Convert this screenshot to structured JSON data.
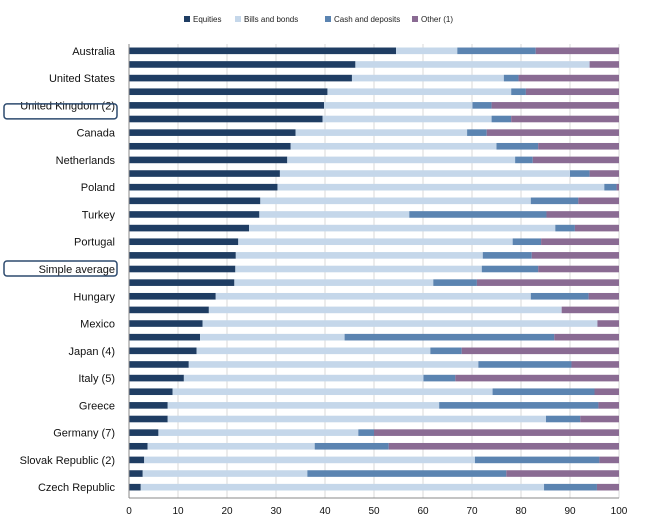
{
  "chart_data": {
    "type": "bar",
    "orientation": "horizontal",
    "stacked": true,
    "title": "",
    "xlabel": "",
    "ylabel": "",
    "xlim": [
      0,
      100
    ],
    "xticks": [
      "0",
      "10",
      "20",
      "30",
      "40",
      "50",
      "60",
      "70",
      "80",
      "90",
      "100"
    ],
    "legend": {
      "placement": "top",
      "entries": [
        "Equities",
        "Bills and bonds",
        "Cash and deposits",
        "Other (1)"
      ]
    },
    "colors": {
      "Equities": "#1f3d63",
      "Bills and bonds": "#c5d7ea",
      "Cash and deposits": "#5b84b1",
      "Other (1)": "#8a6b93"
    },
    "grid": "vertical",
    "categories": [
      "Australia",
      "",
      "United States",
      "",
      "United Kingdom (2)",
      "",
      "Canada",
      "",
      "Netherlands",
      "",
      "Poland",
      "",
      "Turkey",
      "",
      "Portugal",
      "",
      "Simple average",
      "",
      "Hungary",
      "",
      "Mexico",
      "",
      "Japan (4)",
      "",
      "Italy (5)",
      "",
      "Greece",
      "",
      "Germany (7)",
      "",
      "Slovak Republic (2)",
      "",
      "Czech Republic"
    ],
    "highlighted": [
      "United Kingdom (2)",
      "Simple average"
    ],
    "series": [
      {
        "name": "Equities",
        "values": [
          54.5,
          46.2,
          45.5,
          40.5,
          39.8,
          39.5,
          34.0,
          33.0,
          32.3,
          30.8,
          30.3,
          26.8,
          26.6,
          24.5,
          22.3,
          21.8,
          21.7,
          21.5,
          17.7,
          16.3,
          15.0,
          14.5,
          13.8,
          12.2,
          11.2,
          8.9,
          7.9,
          7.9,
          6.0,
          3.8,
          3.1,
          2.8,
          2.4
        ]
      },
      {
        "name": "Bills and bonds",
        "values": [
          12.5,
          47.8,
          31.0,
          37.5,
          30.3,
          34.5,
          35.0,
          42.0,
          46.5,
          59.2,
          66.7,
          55.2,
          30.6,
          62.5,
          56.0,
          50.4,
          50.3,
          40.6,
          64.3,
          72.0,
          80.6,
          29.5,
          47.7,
          59.1,
          48.9,
          65.3,
          55.4,
          77.2,
          40.8,
          34.1,
          67.5,
          33.6,
          82.3
        ]
      },
      {
        "name": "Cash and deposits",
        "values": [
          16.0,
          0.0,
          3.0,
          3.0,
          3.9,
          4.0,
          4.0,
          8.5,
          3.6,
          4.0,
          2.5,
          9.7,
          28.0,
          4.0,
          5.8,
          10.0,
          11.5,
          8.9,
          11.8,
          0.0,
          0.0,
          42.8,
          6.4,
          19.0,
          6.5,
          20.8,
          32.5,
          7.0,
          3.2,
          15.1,
          25.4,
          40.6,
          10.8
        ]
      },
      {
        "name": "Other (1)",
        "values": [
          17.0,
          6.0,
          20.5,
          19.0,
          26.0,
          22.0,
          27.0,
          16.5,
          17.6,
          6.0,
          0.5,
          8.3,
          14.8,
          9.0,
          15.9,
          17.8,
          16.5,
          29.0,
          6.2,
          11.7,
          4.4,
          13.2,
          32.1,
          9.7,
          33.4,
          5.0,
          4.2,
          7.9,
          50.0,
          47.0,
          4.0,
          23.0,
          4.5
        ]
      }
    ]
  }
}
